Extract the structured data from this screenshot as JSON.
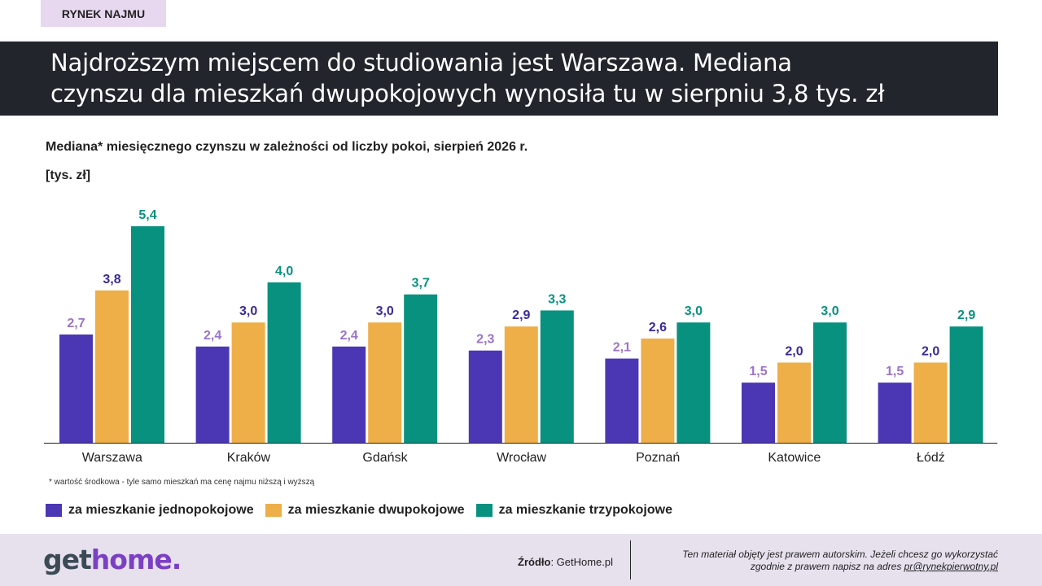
{
  "header": {
    "tag": "RYNEK NAJMU",
    "headline_line1": "Najdroższym miejscem do studiowania jest Warszawa. Mediana",
    "headline_line2": "czynszu dla mieszkań dwupokojowych wynosiła tu w sierpniu 3,8 tys. zł"
  },
  "chart_data": {
    "type": "bar",
    "title": "Mediana* miesięcznego czynszu w zależności od liczby pokoi, sierpień 2026 r.",
    "unit_label": "[tys. zł]",
    "categories": [
      "Warszawa",
      "Kraków",
      "Gdańsk",
      "Wrocław",
      "Poznań",
      "Katowice",
      "Łódź"
    ],
    "series": [
      {
        "name": "za mieszkanie jednopokojowe",
        "values": [
          2.7,
          2.4,
          2.4,
          2.3,
          2.1,
          1.5,
          1.5
        ],
        "labels": [
          "2,7",
          "2,4",
          "2,4",
          "2,3",
          "2,1",
          "1,5",
          "1,5"
        ],
        "color": "#4b37b4",
        "label_color": "#9b74c9"
      },
      {
        "name": "za mieszkanie dwupokojowe",
        "values": [
          3.8,
          3.0,
          3.0,
          2.9,
          2.6,
          2.0,
          2.0
        ],
        "labels": [
          "3,8",
          "3,0",
          "3,0",
          "2,9",
          "2,6",
          "2,0",
          "2,0"
        ],
        "color": "#eeae48",
        "label_color": "#3a2a9a"
      },
      {
        "name": "za mieszkanie trzypokojowe",
        "values": [
          5.4,
          4.0,
          3.7,
          3.3,
          3.0,
          3.0,
          2.9
        ],
        "labels": [
          "5,4",
          "4,0",
          "3,7",
          "3,3",
          "3,0",
          "3,0",
          "2,9"
        ],
        "color": "#08917e",
        "label_color": "#08917e"
      }
    ],
    "ylim": [
      0,
      5.4
    ],
    "grid": false,
    "legend_position": "bottom"
  },
  "footnote": "* wartość środkowa - tyle samo mieszkań ma cenę najmu niższą i wyższą",
  "footer": {
    "logo_part1": "get",
    "logo_part2": "home.",
    "source_label": "Źródło",
    "source_value": ": GetHome.pl",
    "copyright_line1": "Ten materiał objęty jest prawem autorskim. Jeżeli chcesz go wykorzystać",
    "copyright_line2": "zgodnie z prawem napisz na adres ",
    "copyright_email": "pr@rynekpierwotny.pl"
  }
}
